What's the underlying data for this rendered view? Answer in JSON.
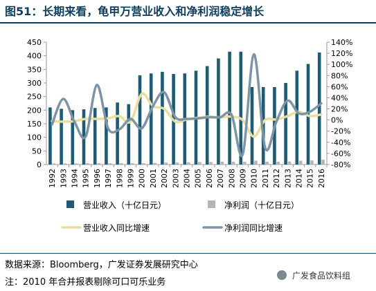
{
  "header": {
    "title": "图51：长期来看，龟甲万营业收入和净利润稳定增长"
  },
  "footer": {
    "source": "数据来源：Bloomberg，广发证券发展研究中心",
    "note": "注：2010 年合并报表剔除可口可乐业务",
    "watermark": "广发食品饮料组"
  },
  "colors": {
    "revenue": "#1f5b73",
    "profit": "#b5b5b5",
    "revenue_growth": "#e8df9e",
    "profit_growth": "#7f93a6"
  },
  "chart_data": {
    "type": "bar",
    "categories": [
      "1992",
      "1993",
      "1994",
      "1995",
      "1996",
      "1997",
      "1998",
      "1999",
      "2000",
      "2001",
      "2002",
      "2003",
      "2004",
      "2005",
      "2006",
      "2007",
      "2008",
      "2009",
      "2010",
      "2011",
      "2012",
      "2013",
      "2014",
      "2015",
      "2016"
    ],
    "series": [
      {
        "name": "营业收入（十亿日元）",
        "type": "bar",
        "axis": "left",
        "values": [
          210,
          205,
          200,
          203,
          208,
          210,
          228,
          222,
          328,
          335,
          341,
          333,
          335,
          345,
          362,
          390,
          415,
          415,
          285,
          285,
          285,
          300,
          345,
          370,
          412
        ]
      },
      {
        "name": "净利润（十亿日元）",
        "type": "bar",
        "axis": "left",
        "values": [
          4,
          4,
          4,
          5,
          5,
          5,
          5,
          5,
          5,
          6,
          7,
          7,
          8,
          9,
          9,
          10,
          10,
          10,
          14,
          10,
          10,
          11,
          14,
          15,
          18
        ]
      },
      {
        "name": "营业收入同比增速",
        "type": "line",
        "axis": "right",
        "values": [
          -2,
          -3,
          -2,
          2,
          2,
          3,
          7,
          -3,
          47,
          25,
          20,
          -3,
          1,
          4,
          6,
          5,
          6,
          0,
          -30,
          0,
          1,
          7,
          15,
          7,
          10
        ]
      },
      {
        "name": "净利润同比增速",
        "type": "line",
        "axis": "right",
        "values": [
          -8,
          38,
          -3,
          -30,
          63,
          -15,
          -17,
          2,
          -15,
          25,
          50,
          5,
          2,
          3,
          5,
          5,
          10,
          -62,
          118,
          -50,
          -3,
          35,
          12,
          15,
          30
        ]
      }
    ],
    "left_axis": {
      "ticks": [
        0,
        50,
        100,
        150,
        200,
        250,
        300,
        350,
        400,
        450
      ],
      "min": 0,
      "max": 450
    },
    "right_axis": {
      "ticks": [
        "-80%",
        "-60%",
        "-40%",
        "-20%",
        "0%",
        "20%",
        "40%",
        "60%",
        "80%",
        "100%",
        "120%",
        "140%"
      ],
      "min": -80,
      "max": 140
    },
    "grid": false,
    "legend_position": "bottom"
  }
}
